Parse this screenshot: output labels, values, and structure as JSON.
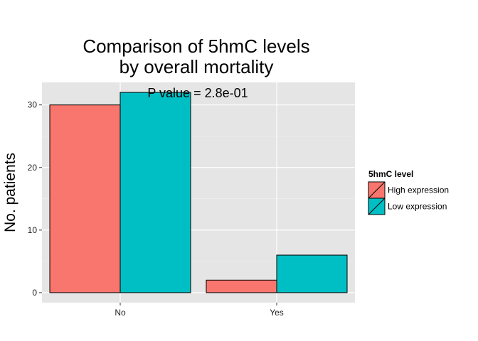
{
  "chart_data": {
    "type": "bar",
    "title_lines": [
      "Comparison of 5hmC levels",
      "by overall mortality"
    ],
    "xlabel": "",
    "ylabel": "No. patients",
    "annotation": "P value = 2.8e-01",
    "categories": [
      "No",
      "Yes"
    ],
    "series": [
      {
        "name": "High expression",
        "values": [
          30,
          2
        ],
        "color": "#F8766D"
      },
      {
        "name": "Low expression",
        "values": [
          32,
          6
        ],
        "color": "#00BFC4"
      }
    ],
    "yticks": [
      0,
      10,
      20,
      30
    ],
    "ylim": [
      -1.6,
      33.6
    ],
    "grid": true,
    "panel_background": "#E5E5E5",
    "grid_color": "#FFFFFF",
    "legend": {
      "title": "5hmC level",
      "position": "right"
    }
  }
}
